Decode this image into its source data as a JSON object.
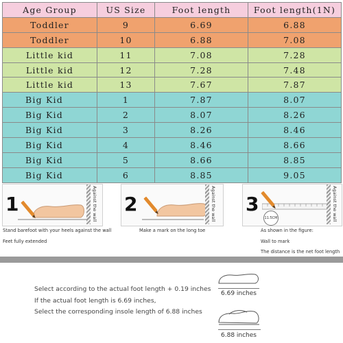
{
  "table": {
    "headers": [
      "Age Group",
      "US Size",
      "Foot length",
      "Foot length(1N)"
    ],
    "rows": [
      {
        "group": "Toddler",
        "size": "9",
        "foot": "6.69",
        "insole": "6.88"
      },
      {
        "group": "Toddler",
        "size": "10",
        "foot": "6.88",
        "insole": "7.08"
      },
      {
        "group": "Little kid",
        "size": "11",
        "foot": "7.08",
        "insole": "7.28"
      },
      {
        "group": "Little kid",
        "size": "12",
        "foot": "7.28",
        "insole": "7.48"
      },
      {
        "group": "Little kid",
        "size": "13",
        "foot": "7.67",
        "insole": "7.87"
      },
      {
        "group": "Big Kid",
        "size": "1",
        "foot": "7.87",
        "insole": "8.07"
      },
      {
        "group": "Big Kid",
        "size": "2",
        "foot": "8.07",
        "insole": "8.26"
      },
      {
        "group": "Big Kid",
        "size": "3",
        "foot": "8.26",
        "insole": "8.46"
      },
      {
        "group": "Big Kid",
        "size": "4",
        "foot": "8.46",
        "insole": "8.66"
      },
      {
        "group": "Big Kid",
        "size": "5",
        "foot": "8.66",
        "insole": "8.85"
      },
      {
        "group": "Big Kid",
        "size": "6",
        "foot": "8.85",
        "insole": "9.05"
      }
    ],
    "colors": {
      "header": "#f6cede",
      "toddler": "#f0a26e",
      "little_kid": "#cfe5a5",
      "big_kid": "#8fd6d4"
    }
  },
  "steps": [
    {
      "number": "1",
      "wall_label": "Against the wall",
      "captions": [
        "Stand barefoot with your heels against the wall",
        "Feet fully extended"
      ]
    },
    {
      "number": "2",
      "wall_label": "Against the wall",
      "captions": [
        "Make a mark on the long toe"
      ]
    },
    {
      "number": "3",
      "wall_label": "Against the wall",
      "ruler_label": "11.5CM",
      "captions": [
        "As shown in the figure:",
        "Wall to mark",
        "The distance is the net foot length"
      ]
    }
  ],
  "notes": [
    "Select according to the actual foot length + 0.19 inches",
    "If the actual foot length is 6.69 inches,",
    "Select the corresponding insole length of 6.88 inches"
  ],
  "figures": {
    "foot_label": "6.69 inches",
    "insole_label": "6.88 inches"
  },
  "icons": [
    "foot-icon",
    "pencil-icon",
    "ruler-icon",
    "shoe-icon"
  ]
}
